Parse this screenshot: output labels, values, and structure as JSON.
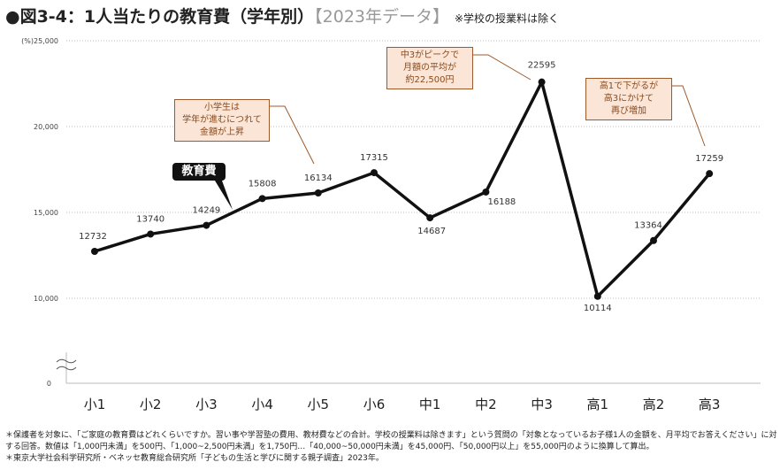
{
  "header": {
    "title": "●図3-4：1人当たりの教育費（学年別）",
    "subtitle": "【2023年データ】",
    "note": "※学校の授業料は除く"
  },
  "chart_data": {
    "type": "line",
    "title": "1人当たりの教育費（学年別）",
    "ylabel": "(%)",
    "ylim": [
      0,
      25000
    ],
    "y_break": [
      0,
      10000
    ],
    "yticks": [
      0,
      10000,
      15000,
      20000,
      25000
    ],
    "ytick_labels": [
      "0",
      "10,000",
      "15,000",
      "20,000",
      "25,000"
    ],
    "categories": [
      "小1",
      "小2",
      "小3",
      "小4",
      "小5",
      "小6",
      "中1",
      "中2",
      "中3",
      "高1",
      "高2",
      "高3"
    ],
    "series": [
      {
        "name": "教育費",
        "values": [
          12732,
          13740,
          14249,
          15808,
          16134,
          17315,
          14687,
          16188,
          22595,
          10114,
          13364,
          17259
        ]
      }
    ],
    "data_labels": [
      "12732",
      "13740",
      "14249",
      "15808",
      "16134",
      "17315",
      "14687",
      "16188",
      "22595",
      "10114",
      "13364",
      "17259"
    ],
    "annotations": [
      {
        "text": [
          "小学生は",
          "学年が進むにつれて",
          "金額が上昇"
        ],
        "target": "小5"
      },
      {
        "text": [
          "中3がピークで",
          "月額の平均が",
          "約22,500円"
        ],
        "target": "中3"
      },
      {
        "text": [
          "高1で下がるが",
          "高3にかけて",
          "再び増加"
        ],
        "target": "高3"
      }
    ],
    "grid": true,
    "legend": "inline-label"
  },
  "footnotes": [
    "＊保護者を対象に、「ご家庭の教育費はどれくらいですか。習い事や学習塾の費用、教材費などの合計。学校の授業料は除きます」という質問の「対象となっているお子様1人の金額を、月平均でお答えください」に対する回答。数値は「1,000円未満」を500円、「1,000~2,500円未満」を1,750円…「40,000~50,000円未満」を45,000円、「50,000円以上」を55,000円のように換算して算出。",
    "＊東京大学社会科学研究所・ベネッセ教育総合研究所「子どもの生活と学びに関する親子調査」2023年。"
  ],
  "colors": {
    "line": "#111111",
    "annotation_bg": "#fbe5d6",
    "annotation_border": "#9c5a2c",
    "annotation_text": "#8a4a1c"
  }
}
